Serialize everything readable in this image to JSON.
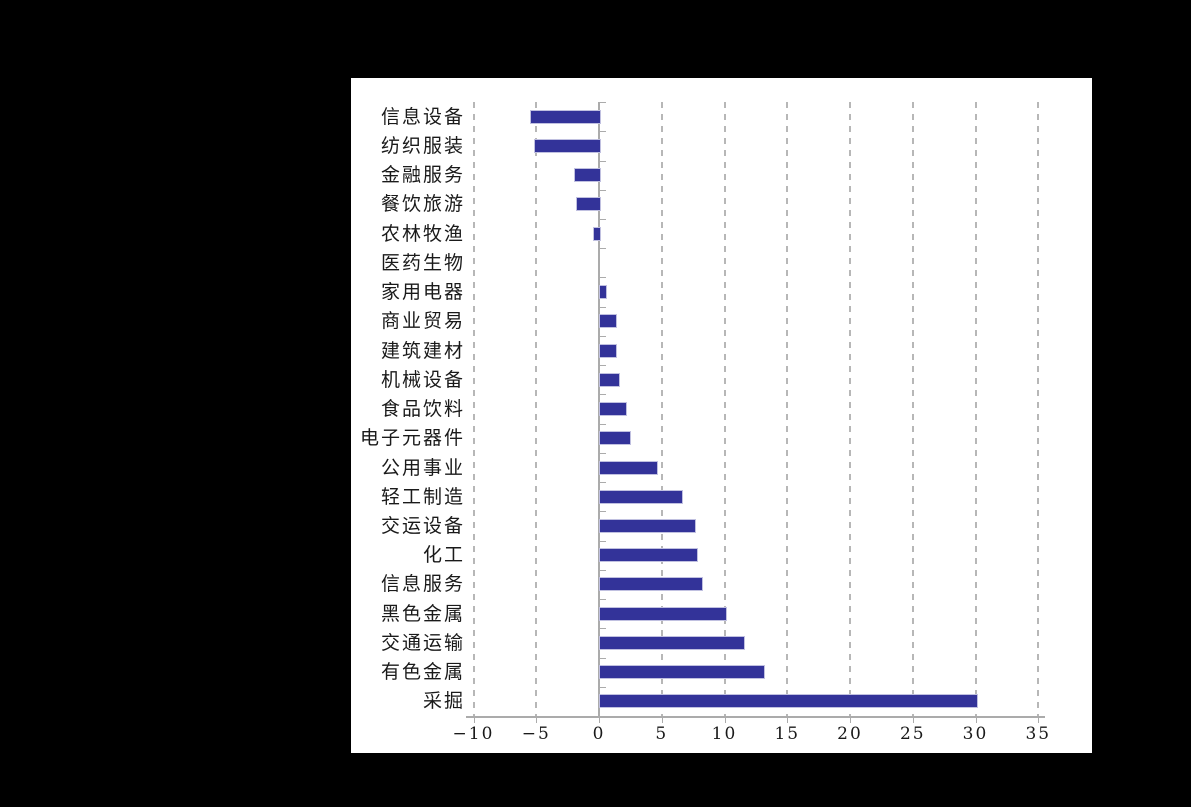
{
  "page": {
    "background_color": "#000000",
    "panel_color": "#ffffff"
  },
  "chart_data": {
    "type": "bar",
    "orientation": "horizontal",
    "title": "",
    "xlabel": "",
    "ylabel": "",
    "xlim": [
      -10,
      35
    ],
    "x_ticks": [
      -10,
      -5,
      0,
      5,
      10,
      15,
      20,
      25,
      30,
      35
    ],
    "x_tick_labels": [
      "−10",
      "−5",
      "0",
      "5",
      "10",
      "15",
      "20",
      "25",
      "30",
      "35"
    ],
    "categories": [
      "信息设备",
      "纺织服装",
      "金融服务",
      "餐饮旅游",
      "农林牧渔",
      "医药生物",
      "家用电器",
      "商业贸易",
      "建筑建材",
      "机械设备",
      "食品饮料",
      "电子元器件",
      "公用事业",
      "轻工制造",
      "交运设备",
      "化工",
      "信息服务",
      "黑色金属",
      "交通运输",
      "有色金属",
      "采掘"
    ],
    "values": [
      -5.5,
      -5.2,
      -2.0,
      -1.8,
      -0.5,
      0,
      0.5,
      1.3,
      1.3,
      1.5,
      2.1,
      2.4,
      4.5,
      6.5,
      7.6,
      7.7,
      8.1,
      10.0,
      11.5,
      13.1,
      30.0
    ],
    "grid": "vertical-dashed",
    "legend": "none",
    "colors": {
      "bar_fill": "#333399",
      "bar_border": "#c0c0e0",
      "gridline": "#b7b7b7",
      "axis_line": "#ababab",
      "text": "#1a1a1a"
    }
  }
}
